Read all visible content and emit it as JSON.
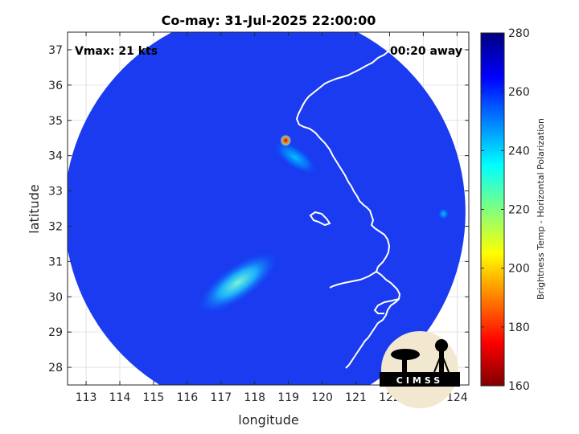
{
  "title": "Co-may: 31-Jul-2025 22:00:00",
  "overlay": {
    "vmax": "Vmax: 21 kts",
    "away": "00:20 away"
  },
  "map": {
    "xlabel": "longitude",
    "ylabel": "latitude",
    "xlim": [
      112.45,
      124.35
    ],
    "ylim": [
      27.5,
      37.5
    ],
    "x_ticks": [
      113,
      114,
      115,
      116,
      117,
      118,
      119,
      120,
      121,
      122,
      123,
      124
    ],
    "y_ticks": [
      28,
      29,
      30,
      31,
      32,
      33,
      34,
      35,
      36,
      37
    ],
    "grid": true,
    "swath_center": [
      118.3,
      32.4
    ],
    "swath_radius_deg": [
      5.95,
      5.75
    ],
    "background_brightness_temp": 270,
    "features": [
      {
        "name": "convective-band-north",
        "lon": 119.2,
        "lat": 33.95,
        "rx": 0.55,
        "ry": 0.22,
        "rot_deg": 35,
        "temp": 245
      },
      {
        "name": "convective-core",
        "lon": 118.92,
        "lat": 34.43,
        "rx": 0.12,
        "ry": 0.12,
        "rot_deg": 0,
        "temp": 185
      },
      {
        "name": "convective-band-south",
        "lon": 117.5,
        "lat": 30.4,
        "rx": 1.0,
        "ry": 0.35,
        "rot_deg": -35,
        "temp": 238
      },
      {
        "name": "warm-cell-east",
        "lon": 123.6,
        "lat": 32.35,
        "rx": 0.12,
        "ry": 0.12,
        "rot_deg": 0,
        "temp": 245
      }
    ]
  },
  "colorbar": {
    "label": "Brightness Temp - Horizontal Polarization",
    "min": 160,
    "max": 280,
    "ticks": [
      160,
      180,
      200,
      220,
      240,
      260,
      280
    ],
    "colors": [
      "#800000",
      "#ff0000",
      "#ff8000",
      "#ffff00",
      "#80ff80",
      "#00ffff",
      "#0080ff",
      "#0000ff",
      "#000080"
    ]
  },
  "logo": {
    "text": "CIMSS"
  }
}
